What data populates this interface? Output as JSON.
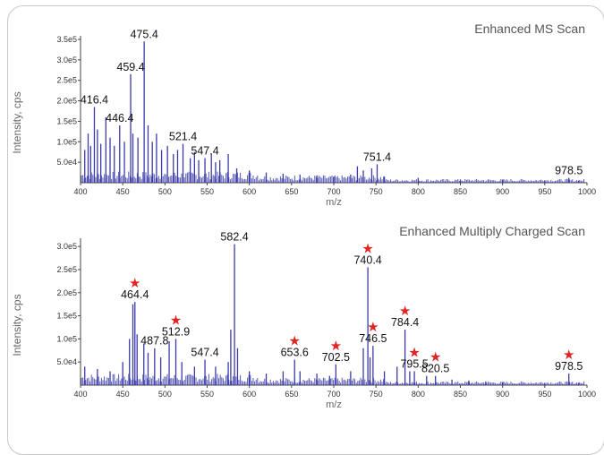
{
  "chart_data": [
    {
      "type": "line",
      "title": "Enhanced MS Scan",
      "xlabel": "m/z",
      "ylabel": "Intensity, cps",
      "xlim": [
        400,
        1000
      ],
      "ylim": [
        0,
        350000
      ],
      "x_ticks": [
        "400",
        "450",
        "500",
        "550",
        "600",
        "650",
        "700",
        "750",
        "800",
        "850",
        "900",
        "950",
        "1000"
      ],
      "y_ticks": [
        {
          "value": 50000,
          "label": "5.0e4"
        },
        {
          "value": 100000,
          "label": "1.0e5"
        },
        {
          "value": 150000,
          "label": "1.5e5"
        },
        {
          "value": 200000,
          "label": "2.0e5"
        },
        {
          "value": 250000,
          "label": "2.5e5"
        },
        {
          "value": 300000,
          "label": "3.0e5"
        },
        {
          "value": 350000,
          "label": "3.5e5"
        }
      ],
      "series": [
        {
          "peaks": [
            [
              405,
              80000
            ],
            [
              409,
              120000
            ],
            [
              412,
              90000
            ],
            [
              416.4,
              185000
            ],
            [
              420,
              130000
            ],
            [
              424,
              95000
            ],
            [
              430,
              160000
            ],
            [
              435,
              110000
            ],
            [
              440,
              90000
            ],
            [
              446.4,
              140000
            ],
            [
              452,
              100000
            ],
            [
              459.4,
              265000
            ],
            [
              462,
              120000
            ],
            [
              468,
              110000
            ],
            [
              475.4,
              345000
            ],
            [
              480,
              140000
            ],
            [
              485,
              100000
            ],
            [
              490,
              120000
            ],
            [
              496,
              80000
            ],
            [
              503,
              90000
            ],
            [
              510,
              70000
            ],
            [
              515,
              80000
            ],
            [
              521.4,
              95000
            ],
            [
              530,
              60000
            ],
            [
              535,
              75000
            ],
            [
              540,
              55000
            ],
            [
              547.4,
              60000
            ],
            [
              555,
              70000
            ],
            [
              560,
              50000
            ],
            [
              565,
              55000
            ],
            [
              575,
              70000
            ],
            [
              585,
              35000
            ],
            [
              600,
              30000
            ],
            [
              620,
              25000
            ],
            [
              640,
              22000
            ],
            [
              660,
              20000
            ],
            [
              680,
              18000
            ],
            [
              700,
              15000
            ],
            [
              720,
              20000
            ],
            [
              728,
              40000
            ],
            [
              735,
              30000
            ],
            [
              745,
              35000
            ],
            [
              751.4,
              45000
            ],
            [
              760,
              15000
            ],
            [
              800,
              12000
            ],
            [
              850,
              8000
            ],
            [
              900,
              7000
            ],
            [
              950,
              6000
            ],
            [
              978.5,
              12000
            ],
            [
              990,
              5000
            ]
          ]
        }
      ],
      "annotations": [
        {
          "label": "475.4",
          "x": 475.4,
          "y": 345000
        },
        {
          "label": "459.4",
          "x": 459.4,
          "y": 265000
        },
        {
          "label": "416.4",
          "x": 416.4,
          "y": 185000
        },
        {
          "label": "446.4",
          "x": 446.4,
          "y": 140000
        },
        {
          "label": "521.4",
          "x": 521.4,
          "y": 95000
        },
        {
          "label": "547.4",
          "x": 547.4,
          "y": 60000
        },
        {
          "label": "751.4",
          "x": 751.4,
          "y": 45000
        },
        {
          "label": "978.5",
          "x": 978.5,
          "y": 12000
        }
      ],
      "colors": {
        "trace": "#3b3ba8",
        "star": "#e02424"
      }
    },
    {
      "type": "line",
      "title": "Enhanced Multiply Charged Scan",
      "xlabel": "m/z",
      "ylabel": "Intensity, cps",
      "xlim": [
        400,
        1000
      ],
      "ylim": [
        0,
        310000
      ],
      "x_ticks": [
        "400",
        "450",
        "500",
        "550",
        "600",
        "650",
        "700",
        "750",
        "800",
        "850",
        "900",
        "950",
        "1000"
      ],
      "y_ticks": [
        {
          "value": 50000,
          "label": "5.0e4"
        },
        {
          "value": 100000,
          "label": "1.0e5"
        },
        {
          "value": 150000,
          "label": "1.5e5"
        },
        {
          "value": 200000,
          "label": "2.0e5"
        },
        {
          "value": 250000,
          "label": "2.5e5"
        },
        {
          "value": 300000,
          "label": "3.0e5"
        }
      ],
      "series": [
        {
          "peaks": [
            [
              405,
              40000
            ],
            [
              420,
              35000
            ],
            [
              435,
              30000
            ],
            [
              450,
              50000
            ],
            [
              458,
              100000
            ],
            [
              462,
              175000
            ],
            [
              464.4,
              180000
            ],
            [
              467,
              110000
            ],
            [
              475,
              90000
            ],
            [
              480,
              70000
            ],
            [
              487.8,
              80000
            ],
            [
              495,
              60000
            ],
            [
              505,
              95000
            ],
            [
              512.9,
              100000
            ],
            [
              520,
              50000
            ],
            [
              535,
              40000
            ],
            [
              547.4,
              55000
            ],
            [
              560,
              40000
            ],
            [
              575,
              50000
            ],
            [
              578,
              120000
            ],
            [
              582.4,
              305000
            ],
            [
              586,
              80000
            ],
            [
              600,
              30000
            ],
            [
              620,
              25000
            ],
            [
              640,
              30000
            ],
            [
              653.6,
              55000
            ],
            [
              660,
              30000
            ],
            [
              680,
              25000
            ],
            [
              695,
              20000
            ],
            [
              702.5,
              45000
            ],
            [
              720,
              30000
            ],
            [
              735,
              80000
            ],
            [
              740.4,
              255000
            ],
            [
              743,
              60000
            ],
            [
              746.5,
              85000
            ],
            [
              760,
              30000
            ],
            [
              775,
              40000
            ],
            [
              784.4,
              120000
            ],
            [
              790,
              30000
            ],
            [
              795.5,
              30000
            ],
            [
              810,
              20000
            ],
            [
              820.5,
              20000
            ],
            [
              840,
              12000
            ],
            [
              860,
              10000
            ],
            [
              880,
              8000
            ],
            [
              900,
              6000
            ],
            [
              950,
              5000
            ],
            [
              978.5,
              25000
            ],
            [
              990,
              5000
            ]
          ]
        }
      ],
      "annotations": [
        {
          "label": "582.4",
          "x": 582.4,
          "y": 305000,
          "star": false
        },
        {
          "label": "740.4",
          "x": 740.4,
          "y": 255000,
          "star": true
        },
        {
          "label": "464.4",
          "x": 464.4,
          "y": 180000,
          "star": true
        },
        {
          "label": "512.9",
          "x": 512.9,
          "y": 100000,
          "star": true
        },
        {
          "label": "487.8",
          "x": 487.8,
          "y": 80000,
          "star": false
        },
        {
          "label": "547.4",
          "x": 547.4,
          "y": 55000,
          "star": false
        },
        {
          "label": "653.6",
          "x": 653.6,
          "y": 55000,
          "star": true
        },
        {
          "label": "702.5",
          "x": 702.5,
          "y": 45000,
          "star": true
        },
        {
          "label": "746.5",
          "x": 746.5,
          "y": 85000,
          "star": true
        },
        {
          "label": "784.4",
          "x": 784.4,
          "y": 120000,
          "star": true
        },
        {
          "label": "795.5",
          "x": 795.5,
          "y": 30000,
          "star": true
        },
        {
          "label": "820.5",
          "x": 820.5,
          "y": 20000,
          "star": true
        },
        {
          "label": "978.5",
          "x": 978.5,
          "y": 25000,
          "star": true
        }
      ],
      "colors": {
        "trace": "#3b3ba8",
        "star": "#e02424"
      }
    }
  ]
}
